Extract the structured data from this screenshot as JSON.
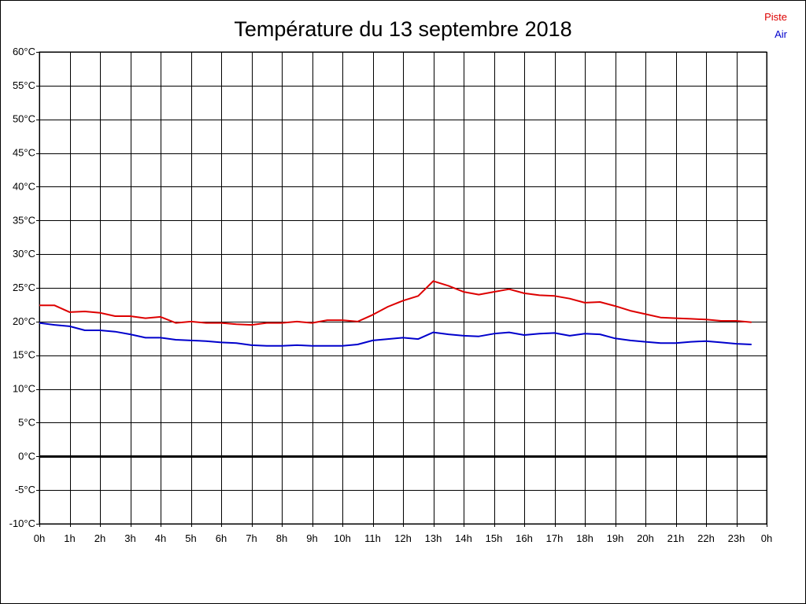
{
  "chart_data": {
    "type": "line",
    "title": "Température du 13 septembre 2018",
    "xlabel": "",
    "ylabel": "",
    "x_tick_labels": [
      "0h",
      "1h",
      "2h",
      "3h",
      "4h",
      "5h",
      "6h",
      "7h",
      "8h",
      "9h",
      "10h",
      "11h",
      "12h",
      "13h",
      "14h",
      "15h",
      "16h",
      "17h",
      "18h",
      "19h",
      "20h",
      "21h",
      "22h",
      "23h",
      "0h"
    ],
    "y_tick_labels": [
      "60°C",
      "55°C",
      "50°C",
      "45°C",
      "40°C",
      "35°C",
      "30°C",
      "25°C",
      "20°C",
      "15°C",
      "10°C",
      "5°C",
      "0°C",
      "-5°C",
      "-10°C"
    ],
    "xlim": [
      0,
      24
    ],
    "ylim": [
      -10,
      60
    ],
    "y_step": 5,
    "grid": true,
    "zero_line": true,
    "legend_position": "top-right",
    "series": [
      {
        "name": "Piste",
        "color": "#dd0000",
        "x": [
          0,
          0.5,
          1,
          1.5,
          2,
          2.5,
          3,
          3.5,
          4,
          4.5,
          5,
          5.5,
          6,
          6.5,
          7,
          7.5,
          8,
          8.5,
          9,
          9.5,
          10,
          10.5,
          11,
          11.5,
          12,
          12.5,
          13,
          13.5,
          14,
          14.5,
          15,
          15.5,
          16,
          16.5,
          17,
          17.5,
          18,
          18.5,
          19,
          19.5,
          20,
          20.5,
          21,
          21.5,
          22,
          22.5,
          23,
          23.5
        ],
        "y": [
          22.4,
          22.4,
          21.4,
          21.5,
          21.3,
          20.8,
          20.8,
          20.5,
          20.7,
          19.8,
          20.0,
          19.8,
          19.8,
          19.6,
          19.5,
          19.8,
          19.8,
          20.0,
          19.8,
          20.2,
          20.2,
          20.0,
          21.0,
          22.2,
          23.1,
          23.8,
          26.0,
          25.3,
          24.4,
          24.0,
          24.4,
          24.8,
          24.2,
          23.9,
          23.8,
          23.4,
          22.8,
          22.9,
          22.3,
          21.6,
          21.1,
          20.6,
          20.5,
          20.4,
          20.3,
          20.1,
          20.1,
          19.9
        ]
      },
      {
        "name": "Air",
        "color": "#0000cc",
        "x": [
          0,
          0.5,
          1,
          1.5,
          2,
          2.5,
          3,
          3.5,
          4,
          4.5,
          5,
          5.5,
          6,
          6.5,
          7,
          7.5,
          8,
          8.5,
          9,
          9.5,
          10,
          10.5,
          11,
          11.5,
          12,
          12.5,
          13,
          13.5,
          14,
          14.5,
          15,
          15.5,
          16,
          16.5,
          17,
          17.5,
          18,
          18.5,
          19,
          19.5,
          20,
          20.5,
          21,
          21.5,
          22,
          22.5,
          23,
          23.5
        ],
        "y": [
          19.8,
          19.5,
          19.3,
          18.7,
          18.7,
          18.5,
          18.1,
          17.6,
          17.6,
          17.3,
          17.2,
          17.1,
          16.9,
          16.8,
          16.5,
          16.4,
          16.4,
          16.5,
          16.4,
          16.4,
          16.4,
          16.6,
          17.2,
          17.4,
          17.6,
          17.4,
          18.4,
          18.1,
          17.9,
          17.8,
          18.2,
          18.4,
          18.0,
          18.2,
          18.3,
          17.9,
          18.2,
          18.1,
          17.5,
          17.2,
          17.0,
          16.8,
          16.8,
          17.0,
          17.1,
          16.9,
          16.7,
          16.6
        ]
      }
    ]
  }
}
